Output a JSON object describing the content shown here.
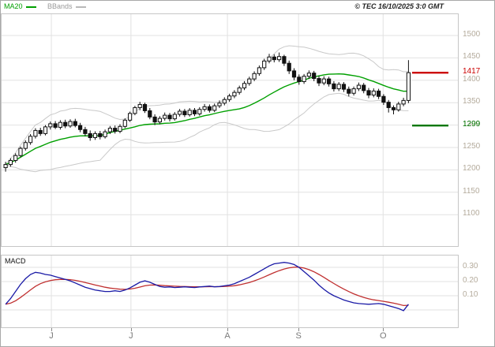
{
  "header": {
    "legend": [
      {
        "label": "MA20",
        "color": "#00a000"
      },
      {
        "label": "BBands",
        "color": "#9a9a9a"
      }
    ],
    "copyright": "© TEC 16/10/2025 3:0 GMT"
  },
  "colors": {
    "ma20": "#00a000",
    "bbands": "#c9c9c9",
    "grid": "#e2e2e2",
    "panel_border": "#c6c6c6",
    "candle": "#111111",
    "axis_text": "#b4ab9c",
    "month_text": "#7a7a7a",
    "macd_line": "#1a1aa6",
    "signal_line": "#c03030",
    "resistance": "#cc0000",
    "support": "#007700"
  },
  "chart_data": [
    {
      "type": "candlestick",
      "title": "",
      "ylabel": "",
      "ylim": [
        1080,
        1530
      ],
      "yticks": [
        1500,
        1450,
        1400,
        1350,
        1300,
        1250,
        1200,
        1150,
        1100
      ],
      "grid": true,
      "overlays": [
        "MA20",
        "BBands"
      ],
      "levels": [
        {
          "value": 1417,
          "label": "1417",
          "color": "#cc0000"
        },
        {
          "value": 1299,
          "label": "1299",
          "color": "#007700"
        }
      ],
      "x_axis": {
        "month_labels": [
          "J",
          "J",
          "A",
          "S",
          "O"
        ],
        "month_positions": [
          9.2,
          25.2,
          44.6,
          58.9,
          75.9
        ]
      },
      "candles": [
        [
          1205,
          1218,
          1196,
          1212
        ],
        [
          1212,
          1226,
          1207,
          1221
        ],
        [
          1221,
          1237,
          1216,
          1232
        ],
        [
          1232,
          1252,
          1228,
          1248
        ],
        [
          1248,
          1266,
          1243,
          1261
        ],
        [
          1261,
          1280,
          1256,
          1275
        ],
        [
          1275,
          1293,
          1270,
          1288
        ],
        [
          1288,
          1294,
          1276,
          1281
        ],
        [
          1281,
          1300,
          1277,
          1296
        ],
        [
          1296,
          1308,
          1290,
          1303
        ],
        [
          1303,
          1309,
          1291,
          1295
        ],
        [
          1295,
          1311,
          1290,
          1306
        ],
        [
          1306,
          1312,
          1293,
          1298
        ],
        [
          1298,
          1313,
          1294,
          1308
        ],
        [
          1308,
          1314,
          1295,
          1299
        ],
        [
          1299,
          1305,
          1284,
          1290
        ],
        [
          1290,
          1296,
          1275,
          1281
        ],
        [
          1281,
          1288,
          1265,
          1272
        ],
        [
          1272,
          1286,
          1267,
          1281
        ],
        [
          1281,
          1287,
          1268,
          1274
        ],
        [
          1274,
          1290,
          1270,
          1285
        ],
        [
          1285,
          1298,
          1280,
          1293
        ],
        [
          1293,
          1299,
          1281,
          1286
        ],
        [
          1286,
          1302,
          1282,
          1297
        ],
        [
          1297,
          1315,
          1293,
          1311
        ],
        [
          1311,
          1330,
          1307,
          1326
        ],
        [
          1326,
          1343,
          1322,
          1339
        ],
        [
          1339,
          1352,
          1333,
          1346
        ],
        [
          1346,
          1350,
          1327,
          1332
        ],
        [
          1332,
          1338,
          1313,
          1318
        ],
        [
          1318,
          1324,
          1300,
          1307
        ],
        [
          1307,
          1320,
          1302,
          1315
        ],
        [
          1315,
          1328,
          1310,
          1322
        ],
        [
          1322,
          1327,
          1308,
          1314
        ],
        [
          1314,
          1329,
          1310,
          1324
        ],
        [
          1324,
          1336,
          1319,
          1331
        ],
        [
          1331,
          1336,
          1318,
          1323
        ],
        [
          1323,
          1338,
          1319,
          1333
        ],
        [
          1333,
          1338,
          1320,
          1325
        ],
        [
          1325,
          1340,
          1321,
          1335
        ],
        [
          1335,
          1347,
          1330,
          1341
        ],
        [
          1341,
          1346,
          1328,
          1333
        ],
        [
          1333,
          1348,
          1329,
          1343
        ],
        [
          1343,
          1355,
          1338,
          1349
        ],
        [
          1349,
          1362,
          1344,
          1357
        ],
        [
          1357,
          1370,
          1352,
          1365
        ],
        [
          1365,
          1378,
          1360,
          1373
        ],
        [
          1373,
          1388,
          1368,
          1383
        ],
        [
          1383,
          1398,
          1378,
          1393
        ],
        [
          1393,
          1408,
          1388,
          1403
        ],
        [
          1403,
          1420,
          1398,
          1415
        ],
        [
          1415,
          1433,
          1410,
          1428
        ],
        [
          1428,
          1448,
          1423,
          1443
        ],
        [
          1443,
          1459,
          1438,
          1452
        ],
        [
          1452,
          1458,
          1440,
          1446
        ],
        [
          1446,
          1462,
          1441,
          1453
        ],
        [
          1453,
          1457,
          1432,
          1438
        ],
        [
          1438,
          1444,
          1414,
          1421
        ],
        [
          1421,
          1427,
          1400,
          1407
        ],
        [
          1407,
          1413,
          1390,
          1397
        ],
        [
          1397,
          1414,
          1392,
          1409
        ],
        [
          1409,
          1422,
          1403,
          1416
        ],
        [
          1416,
          1421,
          1398,
          1404
        ],
        [
          1404,
          1410,
          1387,
          1394
        ],
        [
          1394,
          1409,
          1389,
          1403
        ],
        [
          1403,
          1408,
          1386,
          1392
        ],
        [
          1392,
          1398,
          1375,
          1381
        ],
        [
          1381,
          1396,
          1376,
          1391
        ],
        [
          1391,
          1396,
          1374,
          1380
        ],
        [
          1380,
          1386,
          1364,
          1371
        ],
        [
          1371,
          1386,
          1366,
          1381
        ],
        [
          1381,
          1395,
          1376,
          1389
        ],
        [
          1389,
          1394,
          1371,
          1377
        ],
        [
          1377,
          1383,
          1360,
          1367
        ],
        [
          1367,
          1382,
          1362,
          1376
        ],
        [
          1376,
          1381,
          1358,
          1364
        ],
        [
          1364,
          1369,
          1345,
          1351
        ],
        [
          1351,
          1356,
          1328,
          1339
        ],
        [
          1339,
          1344,
          1324,
          1334
        ],
        [
          1334,
          1352,
          1330,
          1347
        ],
        [
          1347,
          1361,
          1342,
          1355
        ],
        [
          1355,
          1445,
          1349,
          1417
        ]
      ]
    },
    {
      "type": "line",
      "title": "MACD",
      "yticks": [
        0.3,
        0.2,
        0.1
      ],
      "grid": true,
      "series": [
        {
          "name": "MACD",
          "color": "#1a1aa6",
          "values": [
            0.04,
            0.08,
            0.13,
            0.18,
            0.22,
            0.25,
            0.265,
            0.26,
            0.25,
            0.245,
            0.235,
            0.225,
            0.215,
            0.205,
            0.19,
            0.175,
            0.16,
            0.15,
            0.14,
            0.135,
            0.13,
            0.13,
            0.135,
            0.13,
            0.14,
            0.155,
            0.175,
            0.195,
            0.205,
            0.195,
            0.18,
            0.165,
            0.16,
            0.162,
            0.158,
            0.16,
            0.163,
            0.16,
            0.158,
            0.162,
            0.165,
            0.168,
            0.163,
            0.165,
            0.17,
            0.175,
            0.185,
            0.2,
            0.215,
            0.23,
            0.25,
            0.27,
            0.29,
            0.31,
            0.325,
            0.33,
            0.335,
            0.33,
            0.32,
            0.3,
            0.27,
            0.24,
            0.21,
            0.175,
            0.145,
            0.12,
            0.1,
            0.085,
            0.07,
            0.06,
            0.05,
            0.045,
            0.042,
            0.04,
            0.042,
            0.045,
            0.04,
            0.03,
            0.02,
            0.01,
            -0.005,
            0.04
          ]
        },
        {
          "name": "Signal",
          "color": "#c03030",
          "derived": "EMA9 of MACD"
        }
      ]
    }
  ]
}
